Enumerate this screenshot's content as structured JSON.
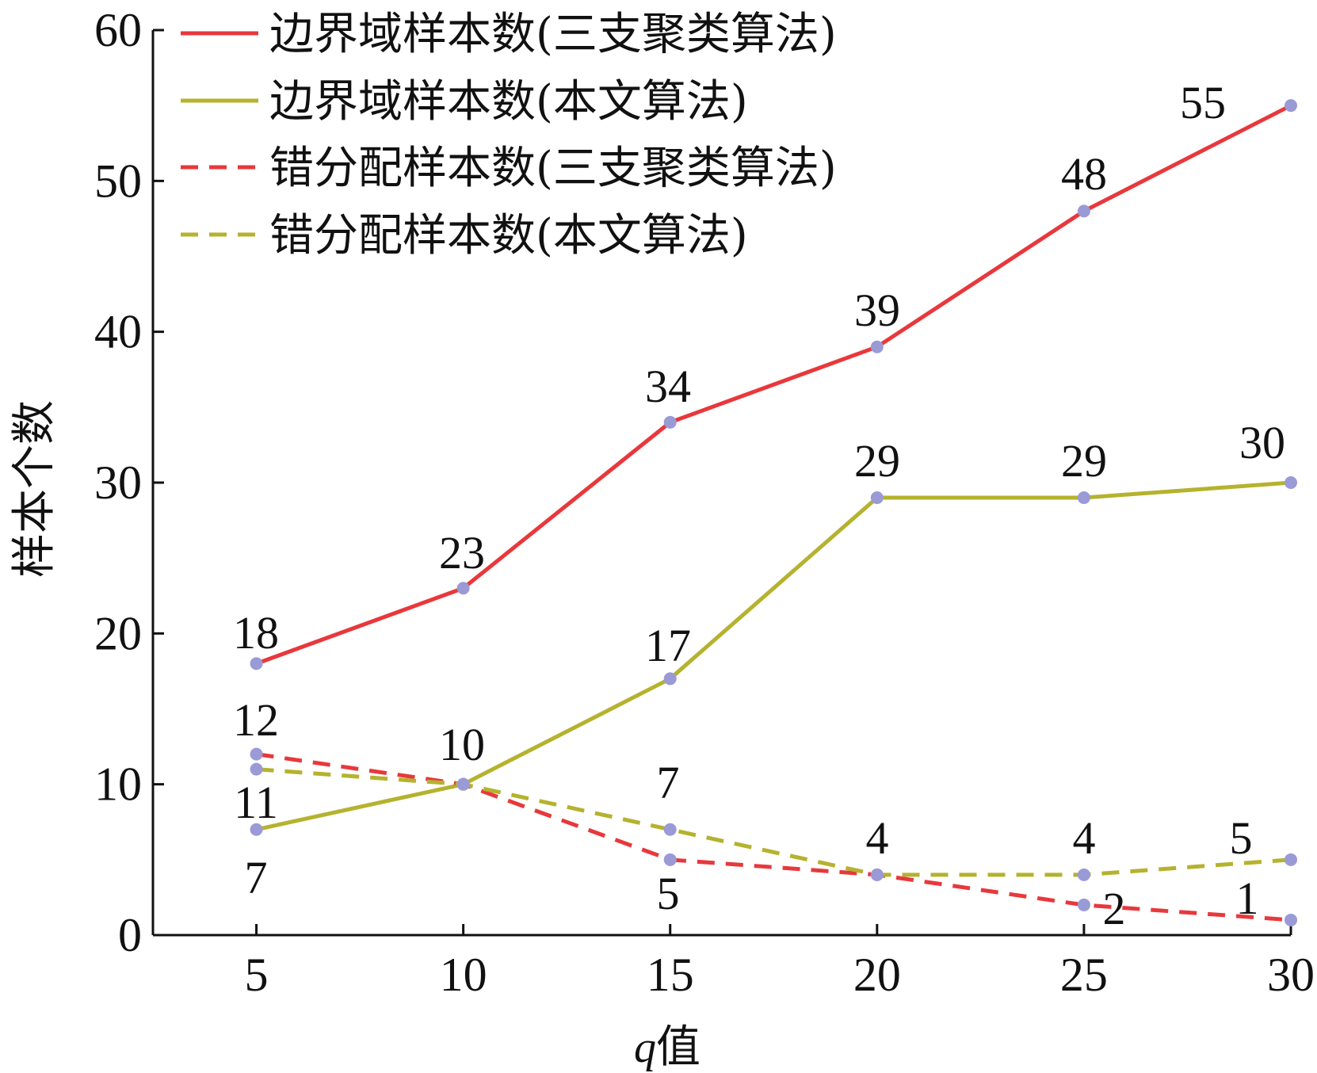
{
  "chart_data": {
    "type": "line",
    "xlabel_var": "q",
    "xlabel_suffix": "值",
    "ylabel": "样本个数",
    "x": [
      5,
      10,
      15,
      20,
      25,
      30
    ],
    "xlim": [
      2.5,
      30
    ],
    "ylim": [
      0,
      60
    ],
    "xticks": [
      5,
      10,
      15,
      20,
      25,
      30
    ],
    "yticks": [
      0,
      10,
      20,
      30,
      40,
      50,
      60
    ],
    "legend_position": "top-left",
    "grid": false,
    "marker_color": "#9a9ad6",
    "series": [
      {
        "name": "边界域样本数(三支聚类算法)",
        "values": [
          18,
          23,
          34,
          39,
          48,
          55
        ],
        "color": "#e8383c",
        "dashed": false
      },
      {
        "name": "边界域样本数(本文算法)",
        "values": [
          7,
          10,
          17,
          29,
          29,
          30
        ],
        "color": "#b5b22e",
        "dashed": false
      },
      {
        "name": "错分配样本数(三支聚类算法)",
        "values": [
          12,
          10,
          5,
          4,
          2,
          1
        ],
        "color": "#e8383c",
        "dashed": true
      },
      {
        "name": "错分配样本数(本文算法)",
        "values": [
          11,
          10,
          7,
          4,
          4,
          5
        ],
        "color": "#b5b22e",
        "dashed": true
      }
    ],
    "data_labels": [
      {
        "text": "18"
      },
      {
        "text": "23"
      },
      {
        "text": "34"
      },
      {
        "text": "39"
      },
      {
        "text": "48"
      },
      {
        "text": "55"
      },
      {
        "text": "17"
      },
      {
        "text": "29"
      },
      {
        "text": "29"
      },
      {
        "text": "30"
      },
      {
        "text": "7"
      },
      {
        "text": "12"
      },
      {
        "text": "10"
      },
      {
        "text": "11"
      },
      {
        "text": "7"
      },
      {
        "text": "5"
      },
      {
        "text": "4"
      },
      {
        "text": "4"
      },
      {
        "text": "2"
      },
      {
        "text": "5"
      },
      {
        "text": "1"
      }
    ]
  }
}
